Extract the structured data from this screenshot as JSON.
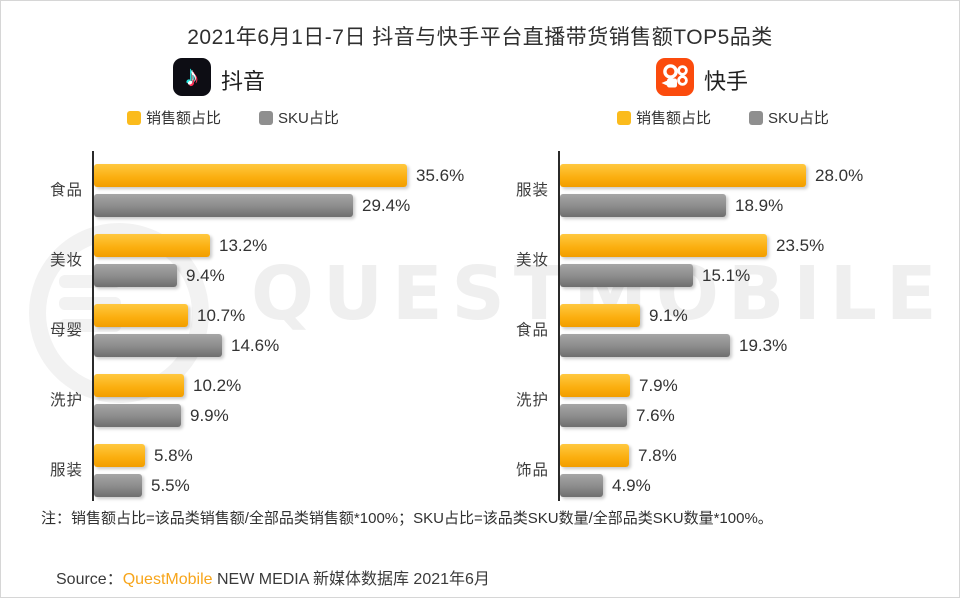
{
  "page": {
    "title": "2021年6月1日-7日 抖音与快手平台直播带货销售额TOP5品类",
    "note": "注：销售额占比=该品类销售额/全部品类销售额*100%；SKU占比=该品类SKU数量/全部品类SKU数量*100%。",
    "source_prefix": "Source：",
    "source_brand": "QuestMobile",
    "source_suffix": " NEW MEDIA 新媒体数据库 2021年6月",
    "watermark": "QUESTMOBILE"
  },
  "colors": {
    "sales_bar": "#FBB116",
    "sku_bar": "#8B8B8B",
    "douyin_icon_bg": "#0D0D14",
    "kuaishou_icon_bg": "#FB4B0D",
    "brand_orange": "#F7A51B"
  },
  "legend": {
    "sales_label": "销售额占比",
    "sku_label": "SKU占比"
  },
  "chart_data": [
    {
      "type": "bar",
      "platform": "抖音",
      "orientation": "horizontal",
      "legend_position": "top",
      "grid": false,
      "value_suffix": "%",
      "xlim": [
        0,
        40
      ],
      "categories": [
        "食品",
        "美妆",
        "母婴",
        "洗护",
        "服装"
      ],
      "series": [
        {
          "name": "销售额占比",
          "values": [
            35.6,
            13.2,
            10.7,
            10.2,
            5.8
          ]
        },
        {
          "name": "SKU占比",
          "values": [
            29.4,
            9.4,
            14.6,
            9.9,
            5.5
          ]
        }
      ]
    },
    {
      "type": "bar",
      "platform": "快手",
      "orientation": "horizontal",
      "legend_position": "top",
      "grid": false,
      "value_suffix": "%",
      "xlim": [
        0,
        40
      ],
      "categories": [
        "服装",
        "美妆",
        "食品",
        "洗护",
        "饰品"
      ],
      "series": [
        {
          "name": "销售额占比",
          "values": [
            28.0,
            23.5,
            9.1,
            7.9,
            7.8
          ]
        },
        {
          "name": "SKU占比",
          "values": [
            18.9,
            15.1,
            19.3,
            7.6,
            4.9
          ]
        }
      ]
    }
  ]
}
